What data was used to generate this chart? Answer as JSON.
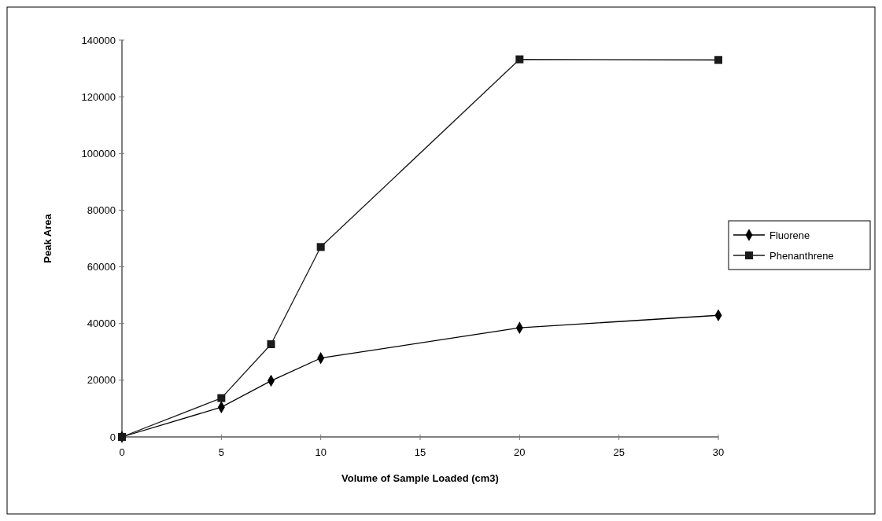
{
  "chart_data": {
    "type": "line",
    "xlabel": "Volume of Sample Loaded (cm3)",
    "ylabel": "Peak Area",
    "x": [
      0,
      5,
      7.5,
      10,
      20,
      30
    ],
    "series": [
      {
        "name": "Fluorene",
        "color": "#000000",
        "marker": "diamond",
        "values": [
          0,
          10500,
          19800,
          27800,
          38500,
          42900
        ]
      },
      {
        "name": "Phenanthrene",
        "color": "#1a1a1a",
        "marker": "square",
        "values": [
          0,
          13700,
          32700,
          67000,
          133200,
          133000
        ]
      }
    ],
    "xlim": [
      0,
      30
    ],
    "xticks": [
      0,
      5,
      10,
      15,
      20,
      25,
      30
    ],
    "ylim": [
      0,
      140000
    ],
    "yticks": [
      0,
      20000,
      40000,
      60000,
      80000,
      100000,
      120000,
      140000
    ],
    "grid": false,
    "legend": "right",
    "line_style": "solid"
  }
}
